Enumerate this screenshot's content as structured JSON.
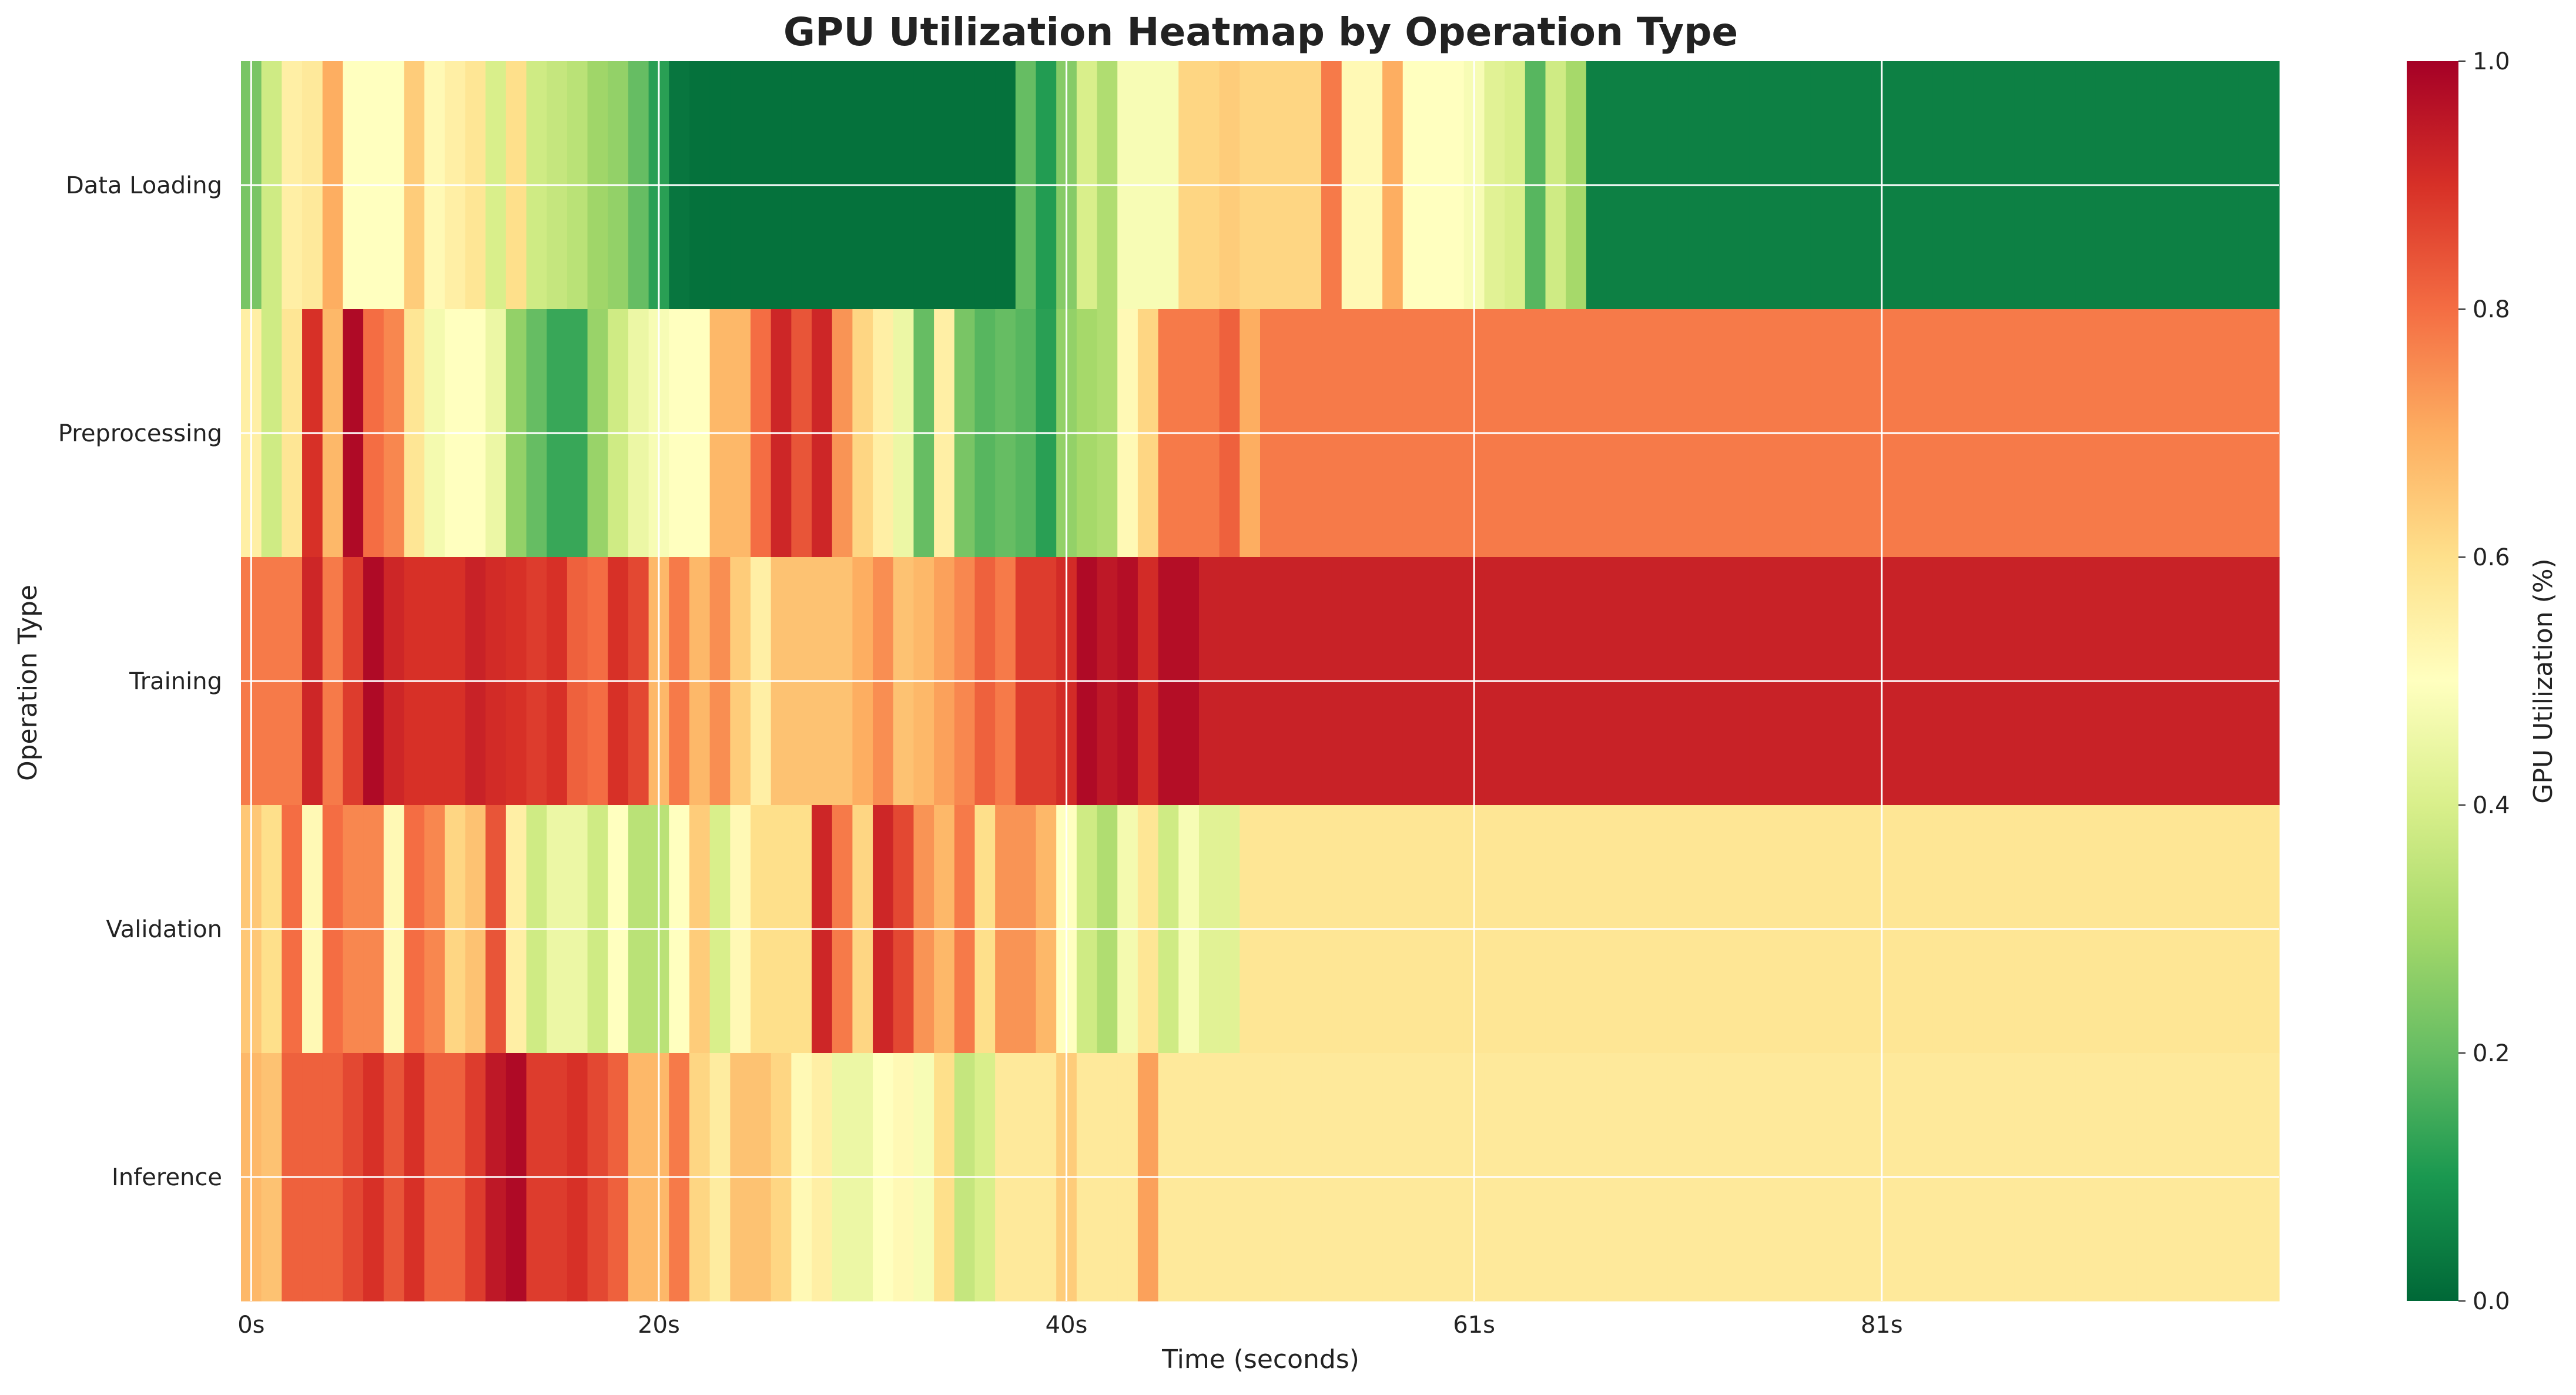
{
  "chart_data": {
    "type": "heatmap",
    "title": "GPU Utilization Heatmap by Operation Type",
    "xlabel": "Time (seconds)",
    "ylabel": "Operation Type",
    "colorbar_label": "GPU Utilization (%)",
    "colormap": "RdYlGn_r",
    "color_range": [
      0,
      1
    ],
    "colorbar_ticks": [
      "0.0",
      "0.2",
      "0.4",
      "0.6",
      "0.8",
      "1.0"
    ],
    "colorbar_tick_values": [
      0,
      0.2,
      0.4,
      0.6,
      0.8,
      1.0
    ],
    "x_ticks": [
      "0s",
      "20s",
      "40s",
      "61s",
      "81s"
    ],
    "x_tick_indices": [
      0,
      20,
      40,
      60,
      80
    ],
    "grid": true,
    "rows": [
      "Data Loading",
      "Preprocessing",
      "Training",
      "Validation",
      "Inference"
    ],
    "n_columns": 100,
    "values": [
      [
        0.23,
        0.38,
        0.55,
        0.57,
        0.7,
        0.5,
        0.5,
        0.5,
        0.64,
        0.52,
        0.55,
        0.58,
        0.4,
        0.6,
        0.38,
        0.36,
        0.34,
        0.29,
        0.27,
        0.2,
        0.12,
        0.03,
        0.02,
        0.02,
        0.02,
        0.02,
        0.02,
        0.02,
        0.02,
        0.02,
        0.02,
        0.02,
        0.02,
        0.02,
        0.02,
        0.02,
        0.02,
        0.02,
        0.2,
        0.11,
        0.25,
        0.4,
        0.32,
        0.48,
        0.48,
        0.48,
        0.62,
        0.62,
        0.64,
        0.62,
        0.62,
        0.62,
        0.62,
        0.78,
        0.52,
        0.52,
        0.7,
        0.5,
        0.5,
        0.5,
        0.48,
        0.42,
        0.4,
        0.18,
        0.38,
        0.3,
        0.05,
        0.05,
        0.05,
        0.05,
        0.05,
        0.05,
        0.05,
        0.05,
        0.05,
        0.05,
        0.05,
        0.05,
        0.05,
        0.05,
        0.05,
        0.05,
        0.05,
        0.05,
        0.05,
        0.05,
        0.05,
        0.05,
        0.05,
        0.05,
        0.05,
        0.05,
        0.05,
        0.05,
        0.05,
        0.05,
        0.05,
        0.05,
        0.05,
        0.05
      ],
      [
        0.55,
        0.38,
        0.58,
        0.9,
        0.68,
        0.98,
        0.8,
        0.76,
        0.58,
        0.47,
        0.5,
        0.5,
        0.45,
        0.27,
        0.2,
        0.14,
        0.14,
        0.28,
        0.38,
        0.45,
        0.48,
        0.5,
        0.5,
        0.68,
        0.68,
        0.8,
        0.92,
        0.84,
        0.92,
        0.74,
        0.62,
        0.55,
        0.45,
        0.2,
        0.55,
        0.23,
        0.18,
        0.2,
        0.18,
        0.12,
        0.27,
        0.3,
        0.32,
        0.52,
        0.62,
        0.78,
        0.78,
        0.78,
        0.82,
        0.7,
        0.78,
        0.78,
        0.78,
        0.78,
        0.78,
        0.78,
        0.78,
        0.78,
        0.78,
        0.78,
        0.78,
        0.78,
        0.78,
        0.78,
        0.78,
        0.78,
        0.78,
        0.78,
        0.78,
        0.78,
        0.78,
        0.78,
        0.78,
        0.78,
        0.78,
        0.78,
        0.78,
        0.78,
        0.78,
        0.78,
        0.78,
        0.78,
        0.78,
        0.78,
        0.78,
        0.78,
        0.78,
        0.78,
        0.78,
        0.78,
        0.78,
        0.78,
        0.78,
        0.78,
        0.78,
        0.78,
        0.78,
        0.78,
        0.78,
        0.78
      ],
      [
        0.78,
        0.78,
        0.78,
        0.92,
        0.78,
        0.88,
        0.98,
        0.92,
        0.9,
        0.9,
        0.9,
        0.93,
        0.91,
        0.9,
        0.88,
        0.9,
        0.82,
        0.8,
        0.9,
        0.86,
        0.68,
        0.78,
        0.68,
        0.75,
        0.64,
        0.55,
        0.66,
        0.66,
        0.66,
        0.66,
        0.7,
        0.75,
        0.66,
        0.68,
        0.72,
        0.76,
        0.82,
        0.78,
        0.88,
        0.88,
        0.91,
        0.98,
        0.95,
        0.97,
        0.91,
        0.97,
        0.97,
        0.93,
        0.93,
        0.93,
        0.93,
        0.93,
        0.93,
        0.93,
        0.93,
        0.93,
        0.93,
        0.93,
        0.93,
        0.93,
        0.93,
        0.93,
        0.93,
        0.93,
        0.93,
        0.93,
        0.93,
        0.93,
        0.93,
        0.93,
        0.93,
        0.93,
        0.93,
        0.93,
        0.93,
        0.93,
        0.93,
        0.93,
        0.93,
        0.93,
        0.93,
        0.93,
        0.93,
        0.93,
        0.93,
        0.93,
        0.93,
        0.93,
        0.93,
        0.93,
        0.93,
        0.93,
        0.93,
        0.93,
        0.93,
        0.93,
        0.93,
        0.93,
        0.93,
        0.93
      ],
      [
        0.65,
        0.6,
        0.8,
        0.52,
        0.8,
        0.76,
        0.76,
        0.52,
        0.8,
        0.76,
        0.62,
        0.66,
        0.84,
        0.55,
        0.38,
        0.45,
        0.45,
        0.38,
        0.5,
        0.34,
        0.34,
        0.5,
        0.64,
        0.4,
        0.52,
        0.6,
        0.6,
        0.6,
        0.92,
        0.78,
        0.62,
        0.92,
        0.86,
        0.74,
        0.68,
        0.78,
        0.6,
        0.74,
        0.74,
        0.68,
        0.5,
        0.38,
        0.32,
        0.47,
        0.58,
        0.38,
        0.48,
        0.42,
        0.42,
        0.58,
        0.58,
        0.58,
        0.58,
        0.58,
        0.58,
        0.58,
        0.58,
        0.58,
        0.58,
        0.58,
        0.58,
        0.58,
        0.58,
        0.58,
        0.58,
        0.58,
        0.58,
        0.58,
        0.58,
        0.58,
        0.58,
        0.58,
        0.58,
        0.58,
        0.58,
        0.58,
        0.58,
        0.58,
        0.58,
        0.58,
        0.58,
        0.58,
        0.58,
        0.58,
        0.58,
        0.58,
        0.58,
        0.58,
        0.58,
        0.58,
        0.58,
        0.58,
        0.58,
        0.58,
        0.58,
        0.58,
        0.58,
        0.58,
        0.58,
        0.58
      ],
      [
        0.68,
        0.66,
        0.82,
        0.82,
        0.82,
        0.86,
        0.9,
        0.84,
        0.9,
        0.82,
        0.82,
        0.88,
        0.95,
        0.98,
        0.88,
        0.88,
        0.9,
        0.86,
        0.82,
        0.68,
        0.68,
        0.78,
        0.62,
        0.56,
        0.66,
        0.66,
        0.62,
        0.52,
        0.55,
        0.45,
        0.45,
        0.5,
        0.52,
        0.48,
        0.6,
        0.36,
        0.4,
        0.57,
        0.57,
        0.57,
        0.64,
        0.57,
        0.57,
        0.57,
        0.72,
        0.57,
        0.57,
        0.57,
        0.57,
        0.57,
        0.57,
        0.57,
        0.57,
        0.57,
        0.57,
        0.57,
        0.57,
        0.57,
        0.57,
        0.57,
        0.57,
        0.57,
        0.57,
        0.57,
        0.57,
        0.57,
        0.57,
        0.57,
        0.57,
        0.57,
        0.57,
        0.57,
        0.57,
        0.57,
        0.57,
        0.57,
        0.57,
        0.57,
        0.57,
        0.57,
        0.57,
        0.57,
        0.57,
        0.57,
        0.57,
        0.57,
        0.57,
        0.57,
        0.57,
        0.57,
        0.57,
        0.57,
        0.57,
        0.57,
        0.57,
        0.57,
        0.57,
        0.57,
        0.57,
        0.57
      ]
    ]
  }
}
